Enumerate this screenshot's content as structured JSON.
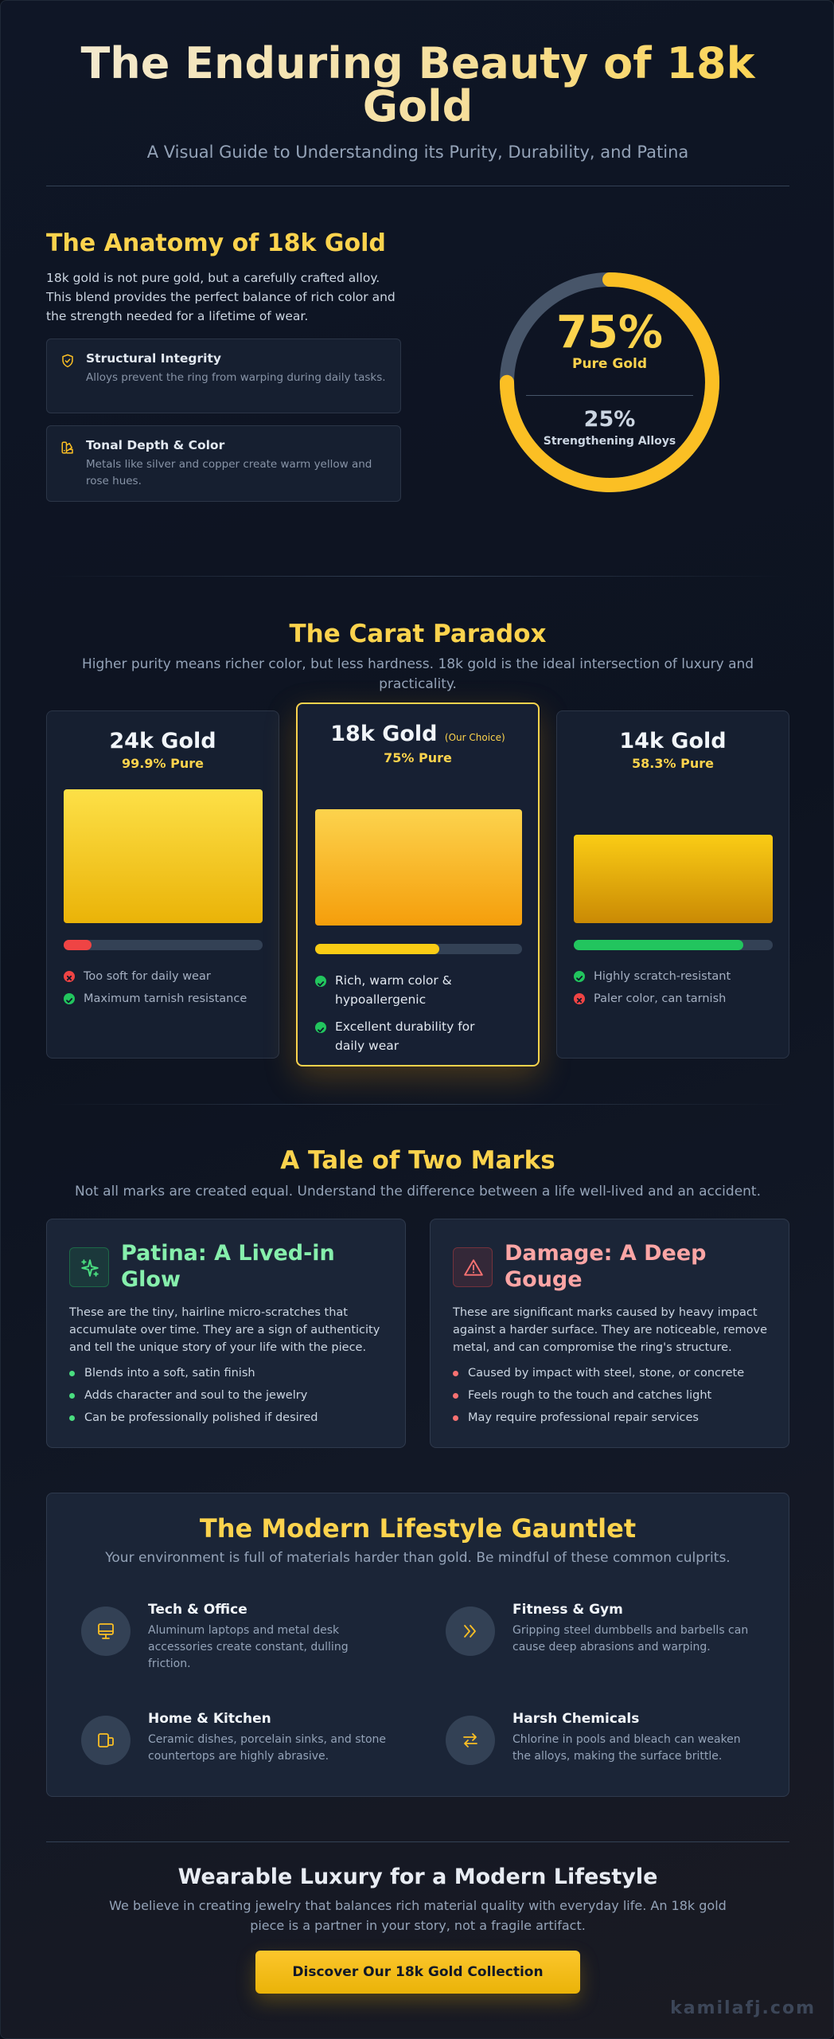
{
  "header": {
    "title": "The Enduring Beauty of 18k Gold",
    "subtitle": "A Visual Guide to Understanding its Purity, Durability, and Patina"
  },
  "anatomy": {
    "title": "The Anatomy of 18k Gold",
    "body": "18k gold is not pure gold, but a carefully crafted alloy. This blend provides the perfect balance of rich color and the strength needed for a lifetime of wear.",
    "features": [
      {
        "icon": "shield-check-icon",
        "title": "Structural Integrity",
        "desc": "Alloys prevent the ring from warping during daily tasks."
      },
      {
        "icon": "palette-icon",
        "title": "Tonal Depth & Color",
        "desc": "Metals like silver and copper create warm yellow and rose hues."
      }
    ],
    "donut": {
      "gold_fraction": 0.75,
      "gold_pct": "75%",
      "gold_label": "Pure Gold",
      "alloy_pct": "25%",
      "alloy_label": "Strengthening Alloys",
      "gold_color": "#fbbf24",
      "alloy_color": "#475569"
    }
  },
  "carat": {
    "title": "The Carat Paradox",
    "subtitle": "Higher purity means richer color, but less hardness. 18k gold is the ideal intersection of luxury and practicality.",
    "cards": [
      {
        "name": "24k Gold",
        "tag": "",
        "purity": "99.9% Pure",
        "durability": 0.14,
        "bar_color": "#ef4444",
        "points": [
          {
            "ok": false,
            "text": "Too soft for daily wear"
          },
          {
            "ok": true,
            "text": "Maximum tarnish resistance"
          }
        ]
      },
      {
        "name": "18k Gold",
        "tag": "(Our Choice)",
        "purity": "75% Pure",
        "durability": 0.6,
        "bar_color": "#facc15",
        "points": [
          {
            "ok": true,
            "text": "Rich, warm color & hypoallergenic"
          },
          {
            "ok": true,
            "text": "Excellent durability for daily wear"
          }
        ]
      },
      {
        "name": "14k Gold",
        "tag": "",
        "purity": "58.3% Pure",
        "durability": 0.85,
        "bar_color": "#22c55e",
        "points": [
          {
            "ok": true,
            "text": "Highly scratch-resistant"
          },
          {
            "ok": false,
            "text": "Paler color, can tarnish"
          }
        ]
      }
    ]
  },
  "marks": {
    "title": "A Tale of Two Marks",
    "subtitle": "Not all marks are created equal. Understand the difference between a life well-lived and an accident.",
    "patina": {
      "icon": "sparkles-icon",
      "title": "Patina: A Lived-in Glow",
      "body": "These are the tiny, hairline micro-scratches that accumulate over time. They are a sign of authenticity and tell the unique story of your life with the piece.",
      "points": [
        "Blends into a soft, satin finish",
        "Adds character and soul to the jewelry",
        "Can be professionally polished if desired"
      ],
      "color": "#86efac"
    },
    "damage": {
      "icon": "warning-triangle-icon",
      "title": "Damage: A Deep Gouge",
      "body": "These are significant marks caused by heavy impact against a harder surface. They are noticeable, remove metal, and can compromise the ring's structure.",
      "points": [
        "Caused by impact with steel, stone, or concrete",
        "Feels rough to the touch and catches light",
        "May require professional repair services"
      ],
      "color": "#fca5a5"
    }
  },
  "gauntlet": {
    "title": "The Modern Lifestyle Gauntlet",
    "subtitle": "Your environment is full of materials harder than gold. Be mindful of these common culprits.",
    "items": [
      {
        "icon": "monitor-icon",
        "title": "Tech & Office",
        "desc": "Aluminum laptops and metal desk accessories create constant, dulling friction."
      },
      {
        "icon": "chevrons-right-icon",
        "title": "Fitness & Gym",
        "desc": "Gripping steel dumbbells and barbells can cause deep abrasions and warping."
      },
      {
        "icon": "devices-icon",
        "title": "Home & Kitchen",
        "desc": "Ceramic dishes, porcelain sinks, and stone countertops are highly abrasive."
      },
      {
        "icon": "swap-arrows-icon",
        "title": "Harsh Chemicals",
        "desc": "Chlorine in pools and bleach can weaken the alloys, making the surface brittle."
      }
    ]
  },
  "footer": {
    "title": "Wearable Luxury for a Modern Lifestyle",
    "body": "We believe in creating jewelry that balances rich material quality with everyday life. An 18k gold piece is a partner in your story, not a fragile artifact.",
    "cta": "Discover Our 18k Gold Collection",
    "brand": "kamilafj.com"
  }
}
